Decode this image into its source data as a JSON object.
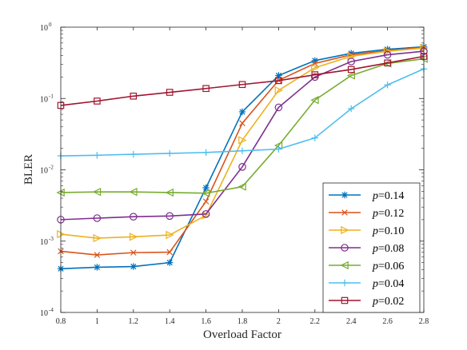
{
  "chart_data": {
    "type": "line",
    "xlabel": "Overload Factor",
    "ylabel": "BLER",
    "x": [
      0.8,
      1.0,
      1.2,
      1.4,
      1.6,
      1.8,
      2.0,
      2.2,
      2.4,
      2.6,
      2.8
    ],
    "xlim": [
      0.8,
      2.8
    ],
    "ylim": [
      0.0001,
      1
    ],
    "yscale": "log",
    "x_ticks": [
      "0.8",
      "1",
      "1.2",
      "1.4",
      "1.6",
      "1.8",
      "2",
      "2.2",
      "2.4",
      "2.6",
      "2.8"
    ],
    "y_ticks": [
      {
        "base": "10",
        "exp": "-4"
      },
      {
        "base": "10",
        "exp": "-3"
      },
      {
        "base": "10",
        "exp": "-2"
      },
      {
        "base": "10",
        "exp": "-1"
      },
      {
        "base": "10",
        "exp": "0"
      }
    ],
    "legend_position": "bottom-right",
    "series": [
      {
        "name": "p=0.14",
        "var": "p",
        "value": "=0.14",
        "color": "#0072BD",
        "marker": "asterisk",
        "values": [
          0.00041,
          0.00043,
          0.00044,
          0.0005,
          0.0056,
          0.065,
          0.21,
          0.34,
          0.43,
          0.49,
          0.53
        ]
      },
      {
        "name": "p=0.12",
        "var": "p",
        "value": "=0.12",
        "color": "#D95319",
        "marker": "x",
        "values": [
          0.00072,
          0.00064,
          0.00069,
          0.0007,
          0.0036,
          0.045,
          0.18,
          0.31,
          0.41,
          0.47,
          0.52
        ]
      },
      {
        "name": "p=0.10",
        "var": "p",
        "value": "=0.10",
        "color": "#EDB120",
        "marker": "triangle-right",
        "values": [
          0.00125,
          0.0011,
          0.00115,
          0.00122,
          0.0023,
          0.026,
          0.13,
          0.27,
          0.39,
          0.46,
          0.51
        ]
      },
      {
        "name": "p=0.08",
        "var": "p",
        "value": "=0.08",
        "color": "#7E2F8E",
        "marker": "circle",
        "values": [
          0.002,
          0.0021,
          0.0022,
          0.00225,
          0.0024,
          0.011,
          0.075,
          0.2,
          0.33,
          0.41,
          0.46
        ]
      },
      {
        "name": "p=0.06",
        "var": "p",
        "value": "=0.06",
        "color": "#77AC30",
        "marker": "triangle-left",
        "values": [
          0.0048,
          0.0049,
          0.0049,
          0.0048,
          0.0047,
          0.0058,
          0.022,
          0.095,
          0.21,
          0.31,
          0.36
        ]
      },
      {
        "name": "p=0.04",
        "var": "p",
        "value": "=0.04",
        "color": "#4DBEEE",
        "marker": "plus",
        "values": [
          0.0157,
          0.016,
          0.0165,
          0.017,
          0.0175,
          0.0185,
          0.0195,
          0.028,
          0.072,
          0.155,
          0.26
        ]
      },
      {
        "name": "p=0.02",
        "var": "p",
        "value": "=0.02",
        "color": "#A2142F",
        "marker": "square",
        "values": [
          0.08,
          0.092,
          0.108,
          0.122,
          0.138,
          0.157,
          0.178,
          0.215,
          0.255,
          0.315,
          0.39
        ]
      }
    ]
  }
}
